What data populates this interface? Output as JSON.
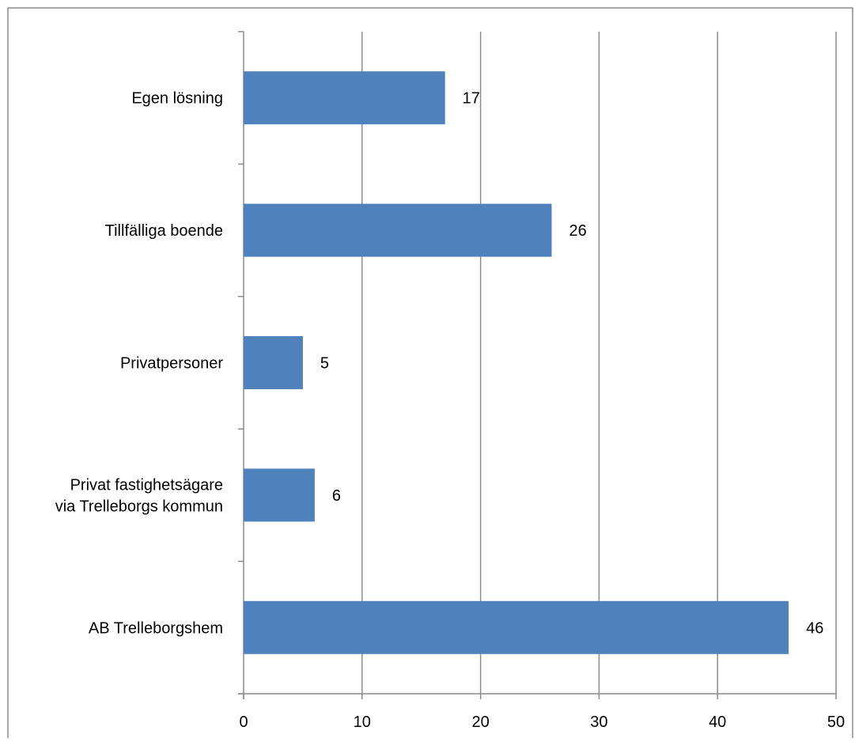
{
  "chart_data": {
    "type": "bar",
    "orientation": "horizontal",
    "title": "",
    "xlabel": "",
    "ylabel": "",
    "categories": [
      "Egen lösning",
      "Tillfälliga boende",
      "Privatpersoner",
      "Privat fastighetsägare via Trelleborgs kommun",
      "AB Trelleborgshem"
    ],
    "category_lines": [
      [
        "Egen lösning"
      ],
      [
        "Tillfälliga boende"
      ],
      [
        "Privatpersoner"
      ],
      [
        "Privat fastighetsägare",
        "via Trelleborgs kommun"
      ],
      [
        "AB Trelleborgshem"
      ]
    ],
    "values": [
      17,
      26,
      5,
      6,
      46
    ],
    "data_labels": [
      "17",
      "26",
      "5",
      "6",
      "46"
    ],
    "xlim": [
      0,
      50
    ],
    "x_ticks": [
      0,
      10,
      20,
      30,
      40,
      50
    ],
    "x_tick_labels": [
      "0",
      "10",
      "20",
      "30",
      "40",
      "50"
    ],
    "grid": "vertical",
    "legend": "none",
    "bar_color": "#4f81bd",
    "gridline_color": "#8c8c8c",
    "frame_color": "#8c8c8c"
  }
}
